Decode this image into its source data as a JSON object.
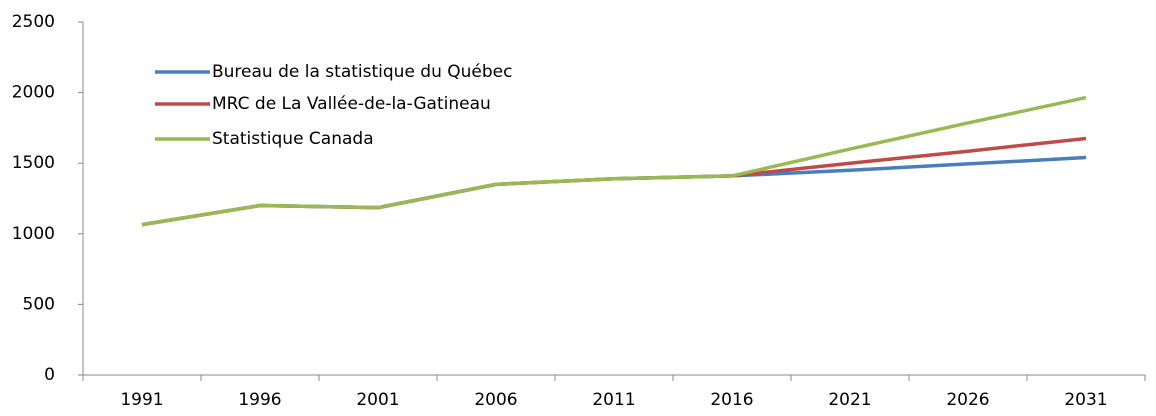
{
  "chart_data": {
    "type": "line",
    "categories": [
      "1991",
      "1996",
      "2001",
      "2006",
      "2011",
      "2016",
      "2021",
      "2026",
      "2031"
    ],
    "series": [
      {
        "name": "Bureau de la statistique du Québec",
        "color": "#4a7ebb",
        "values": [
          1065,
          1200,
          1185,
          1350,
          1390,
          1410,
          1450,
          1495,
          1540
        ]
      },
      {
        "name": "MRC de La Vallée-de-la-Gatineau",
        "color": "#be4b48",
        "values": [
          1065,
          1200,
          1185,
          1350,
          1390,
          1410,
          1500,
          1585,
          1675
        ]
      },
      {
        "name": "Statistique Canada",
        "color": "#98b954",
        "values": [
          1065,
          1200,
          1185,
          1350,
          1390,
          1410,
          1600,
          1785,
          1965
        ]
      }
    ],
    "ylim": [
      0,
      2500
    ],
    "yticks": [
      0,
      500,
      1000,
      1500,
      2000,
      2500
    ],
    "grid": false,
    "legend": "upper left"
  }
}
